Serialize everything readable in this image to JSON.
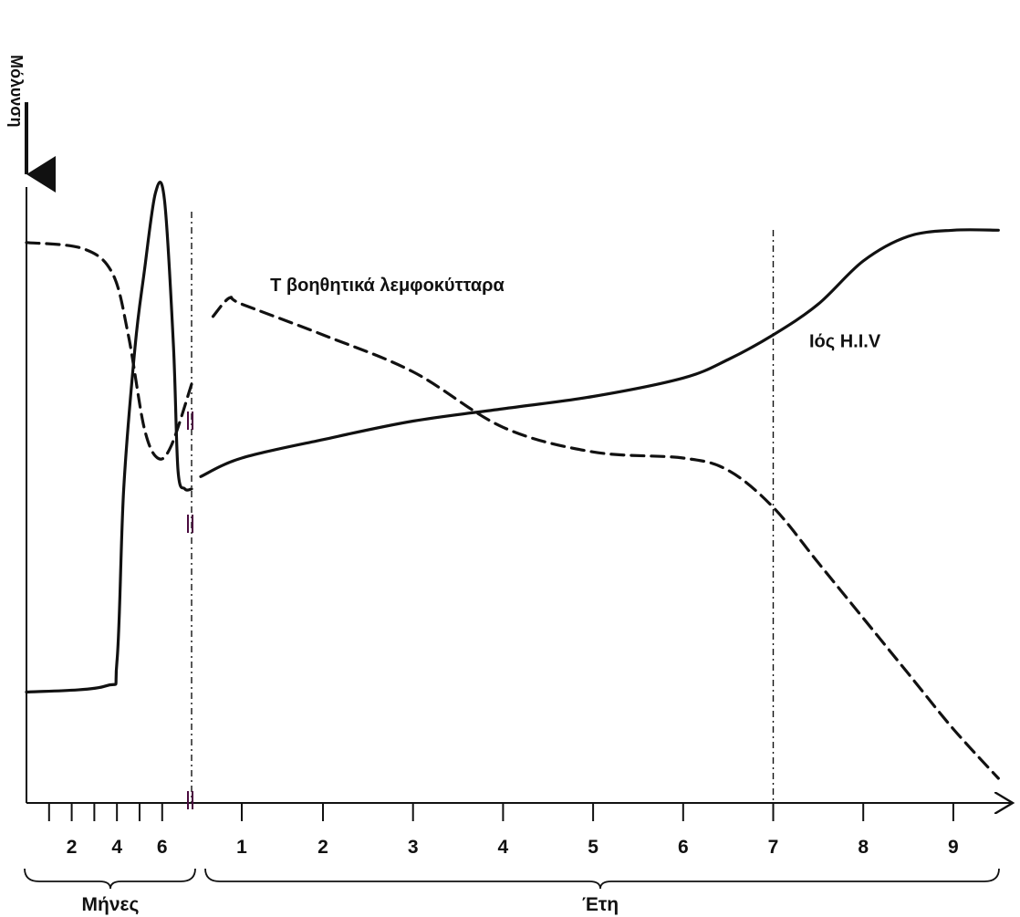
{
  "chart_data": {
    "type": "line",
    "infection_label": "Μόλυνση",
    "series": [
      {
        "name": "Ιός H.I.V",
        "line_style": "solid",
        "color": "#111111",
        "points": [
          {
            "period": "months",
            "x": 0,
            "y": 18
          },
          {
            "period": "months",
            "x": 3.5,
            "y": 19
          },
          {
            "period": "months",
            "x": 4,
            "y": 23
          },
          {
            "period": "months",
            "x": 4.3,
            "y": 51
          },
          {
            "period": "months",
            "x": 4.8,
            "y": 74
          },
          {
            "period": "months",
            "x": 5.2,
            "y": 86
          },
          {
            "period": "months",
            "x": 5.7,
            "y": 99
          },
          {
            "period": "months",
            "x": 6.1,
            "y": 98
          },
          {
            "period": "months",
            "x": 6.5,
            "y": 74
          },
          {
            "period": "months",
            "x": 6.7,
            "y": 54
          },
          {
            "period": "months",
            "x": 7.0,
            "y": 51
          },
          {
            "period": "months",
            "x": 7.3,
            "y": 51
          },
          {
            "period": "years",
            "x": 0,
            "y": 53
          },
          {
            "period": "years",
            "x": 1,
            "y": 56
          },
          {
            "period": "years",
            "x": 2,
            "y": 59
          },
          {
            "period": "years",
            "x": 3,
            "y": 62
          },
          {
            "period": "years",
            "x": 4,
            "y": 64
          },
          {
            "period": "years",
            "x": 5,
            "y": 66
          },
          {
            "period": "years",
            "x": 6,
            "y": 69
          },
          {
            "period": "years",
            "x": 6.5,
            "y": 72
          },
          {
            "period": "years",
            "x": 7,
            "y": 76
          },
          {
            "period": "years",
            "x": 7.5,
            "y": 81
          },
          {
            "period": "years",
            "x": 8,
            "y": 88
          },
          {
            "period": "years",
            "x": 8.5,
            "y": 92
          },
          {
            "period": "years",
            "x": 9,
            "y": 93
          },
          {
            "period": "years",
            "x": 9.5,
            "y": 93
          }
        ]
      },
      {
        "name": "Τ βοηθητικά λεμφοκύτταρα",
        "line_style": "dashed",
        "color": "#111111",
        "points": [
          {
            "period": "months",
            "x": 0,
            "y": 91
          },
          {
            "period": "months",
            "x": 2.5,
            "y": 90
          },
          {
            "period": "months",
            "x": 3.8,
            "y": 86
          },
          {
            "period": "months",
            "x": 4.5,
            "y": 76
          },
          {
            "period": "months",
            "x": 5.2,
            "y": 61
          },
          {
            "period": "months",
            "x": 5.8,
            "y": 56
          },
          {
            "period": "months",
            "x": 6.4,
            "y": 58
          },
          {
            "period": "months",
            "x": 7.3,
            "y": 68
          },
          {
            "period": "years",
            "x": 0.3,
            "y": 79
          },
          {
            "period": "years",
            "x": 0.7,
            "y": 82
          },
          {
            "period": "years",
            "x": 1,
            "y": 81
          },
          {
            "period": "years",
            "x": 2,
            "y": 76
          },
          {
            "period": "years",
            "x": 3,
            "y": 70
          },
          {
            "period": "years",
            "x": 4,
            "y": 61
          },
          {
            "period": "years",
            "x": 5,
            "y": 57
          },
          {
            "period": "years",
            "x": 6,
            "y": 56
          },
          {
            "period": "years",
            "x": 6.5,
            "y": 54
          },
          {
            "period": "years",
            "x": 7,
            "y": 48
          },
          {
            "period": "years",
            "x": 7.5,
            "y": 39
          },
          {
            "period": "years",
            "x": 8,
            "y": 30
          },
          {
            "period": "years",
            "x": 8.5,
            "y": 21
          },
          {
            "period": "years",
            "x": 9,
            "y": 12
          },
          {
            "period": "years",
            "x": 9.5,
            "y": 4
          }
        ]
      }
    ],
    "x_axis": {
      "months": {
        "tick_labels": [
          "2",
          "4",
          "6"
        ],
        "range_label": "Μήνες"
      },
      "years": {
        "tick_labels": [
          "1",
          "2",
          "3",
          "4",
          "5",
          "6",
          "7",
          "8",
          "9"
        ],
        "range_label": "Έτη"
      }
    },
    "y_axis": {
      "ylim": [
        0,
        100
      ],
      "tick_labels": []
    },
    "reference_lines": [
      {
        "period": "months",
        "x": 7.3,
        "style": "dash-dot"
      },
      {
        "period": "years",
        "x": 7,
        "style": "dash-dot"
      }
    ],
    "annotations": [
      {
        "series": "Τ βοηθητικά λεμφοκύτταρα",
        "text": "Τ βοηθητικά λεμφοκύτταρα"
      },
      {
        "series": "Ιός H.I.V",
        "text": "Ιός H.I.V"
      }
    ],
    "grid": false,
    "legend": "none"
  }
}
